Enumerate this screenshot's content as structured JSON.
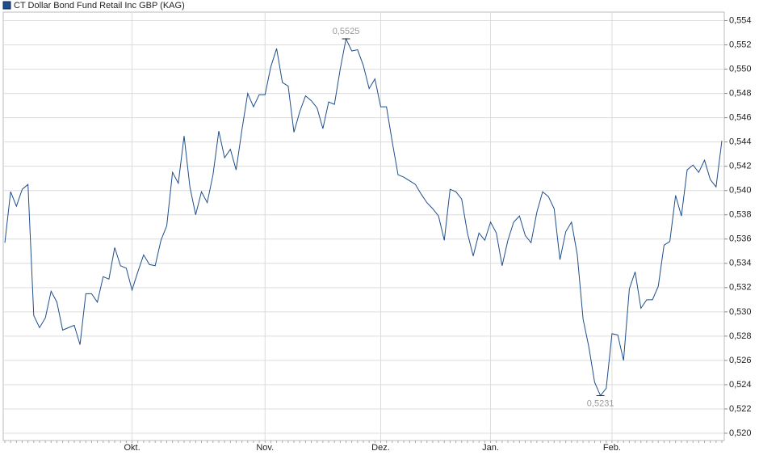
{
  "chart_data": {
    "type": "line",
    "categories": [
      null,
      null,
      null,
      null,
      null,
      null,
      null,
      null,
      null,
      null,
      null,
      null,
      null,
      null,
      null,
      null,
      null,
      null,
      null,
      null,
      null,
      null,
      "Okt.",
      null,
      null,
      null,
      null,
      null,
      null,
      null,
      null,
      null,
      null,
      null,
      null,
      null,
      null,
      null,
      null,
      null,
      null,
      null,
      null,
      null,
      null,
      "Nov.",
      null,
      null,
      null,
      null,
      null,
      null,
      null,
      null,
      null,
      null,
      null,
      null,
      null,
      null,
      null,
      null,
      null,
      null,
      null,
      "Dez.",
      null,
      null,
      null,
      null,
      null,
      null,
      null,
      null,
      null,
      null,
      null,
      null,
      null,
      null,
      null,
      null,
      null,
      null,
      "Jan.",
      null,
      null,
      null,
      null,
      null,
      null,
      null,
      null,
      null,
      null,
      null,
      null,
      null,
      null,
      null,
      null,
      null,
      null,
      null,
      null,
      "Feb.",
      null,
      null,
      null,
      null,
      null,
      null,
      null,
      null,
      null,
      null,
      null,
      null,
      null,
      null,
      null,
      null,
      null,
      null,
      null
    ],
    "series": [
      {
        "name": "CT Dollar Bond Fund Retail Inc GBP (KAG)",
        "color": "#1f4e8c",
        "values": [
          0.5357,
          0.5399,
          0.5387,
          0.5401,
          0.5405,
          0.5297,
          0.5287,
          0.5295,
          0.5317,
          0.5308,
          0.5285,
          0.5287,
          0.5289,
          0.5273,
          0.5315,
          0.5315,
          0.5308,
          0.5329,
          0.5327,
          0.5353,
          0.5338,
          0.5336,
          0.5318,
          0.5333,
          0.5347,
          0.5339,
          0.5338,
          0.5359,
          0.5371,
          0.5415,
          0.5406,
          0.5445,
          0.5403,
          0.538,
          0.5399,
          0.539,
          0.5413,
          0.5449,
          0.5427,
          0.5434,
          0.5417,
          0.545,
          0.548,
          0.5469,
          0.5479,
          0.5479,
          0.5502,
          0.5517,
          0.5489,
          0.5486,
          0.5448,
          0.5465,
          0.5478,
          0.5474,
          0.5468,
          0.5451,
          0.5473,
          0.5471,
          0.55,
          0.5525,
          0.5515,
          0.5516,
          0.5503,
          0.5484,
          0.5492,
          0.5469,
          0.5469,
          0.544,
          0.5413,
          0.5411,
          0.5408,
          0.5405,
          0.5397,
          0.539,
          0.5385,
          0.5379,
          0.5359,
          0.5401,
          0.5399,
          0.5393,
          0.5365,
          0.5346,
          0.5365,
          0.5359,
          0.5374,
          0.5365,
          0.5338,
          0.5359,
          0.5374,
          0.5379,
          0.5363,
          0.5357,
          0.5382,
          0.5399,
          0.5395,
          0.5385,
          0.5343,
          0.5366,
          0.5374,
          0.5347,
          0.5294,
          0.5271,
          0.5242,
          0.5231,
          0.5237,
          0.5282,
          0.5281,
          0.526,
          0.5319,
          0.5333,
          0.5303,
          0.531,
          0.531,
          0.5321,
          0.5355,
          0.5358,
          0.5396,
          0.5379,
          0.5417,
          0.5421,
          0.5415,
          0.5425,
          0.5409,
          0.5403,
          0.5441
        ],
        "value_labels": [
          null,
          null,
          null,
          null,
          null,
          null,
          null,
          null,
          null,
          null,
          null,
          null,
          null,
          null,
          null,
          null,
          null,
          null,
          null,
          null,
          null,
          null,
          null,
          null,
          null,
          null,
          null,
          null,
          null,
          null,
          null,
          null,
          null,
          null,
          null,
          null,
          null,
          null,
          null,
          null,
          null,
          null,
          null,
          null,
          null,
          null,
          null,
          null,
          null,
          null,
          null,
          null,
          null,
          null,
          null,
          null,
          null,
          null,
          null,
          "0,5525",
          null,
          null,
          null,
          null,
          null,
          null,
          null,
          null,
          null,
          null,
          null,
          null,
          null,
          null,
          null,
          null,
          null,
          null,
          null,
          null,
          null,
          null,
          null,
          null,
          null,
          null,
          null,
          null,
          null,
          null,
          null,
          null,
          null,
          null,
          null,
          null,
          null,
          null,
          null,
          null,
          null,
          null,
          null,
          "0,5231",
          null,
          null,
          null,
          null,
          null,
          null,
          null,
          null,
          null,
          null,
          null,
          null,
          null,
          null,
          null,
          null,
          null,
          null,
          null,
          null,
          null
        ]
      }
    ],
    "ylim": [
      0.5194,
      0.5547
    ],
    "yticks": [
      {
        "value": 0.52,
        "label": "0,520"
      },
      {
        "value": 0.522,
        "label": "0,522"
      },
      {
        "value": 0.524,
        "label": "0,524"
      },
      {
        "value": 0.526,
        "label": "0,526"
      },
      {
        "value": 0.528,
        "label": "0,528"
      },
      {
        "value": 0.53,
        "label": "0,530"
      },
      {
        "value": 0.532,
        "label": "0,532"
      },
      {
        "value": 0.534,
        "label": "0,534"
      },
      {
        "value": 0.536,
        "label": "0,536"
      },
      {
        "value": 0.538,
        "label": "0,538"
      },
      {
        "value": 0.54,
        "label": "0,540"
      },
      {
        "value": 0.542,
        "label": "0,542"
      },
      {
        "value": 0.544,
        "label": "0,544"
      },
      {
        "value": 0.546,
        "label": "0,546"
      },
      {
        "value": 0.548,
        "label": "0,548"
      },
      {
        "value": 0.55,
        "label": "0,550"
      },
      {
        "value": 0.552,
        "label": "0,552"
      },
      {
        "value": 0.554,
        "label": "0,554"
      }
    ],
    "grid": true
  }
}
